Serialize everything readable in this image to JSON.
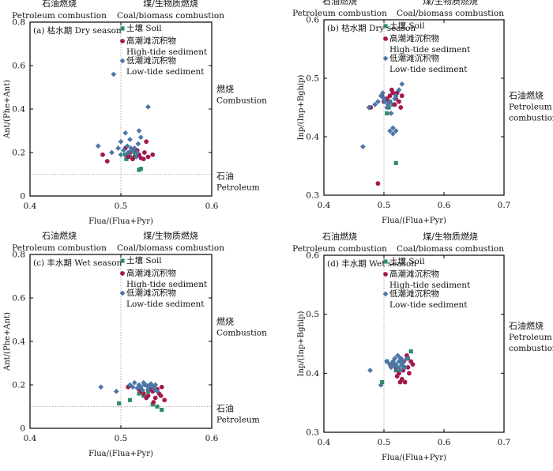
{
  "colors": {
    "soil": "#2e8b6a",
    "high": "#a3194f",
    "low": "#4a77a6",
    "axis": "#000000",
    "ref": "#9a9a9a"
  },
  "chart_data": [
    {
      "id": "a",
      "type": "scatter",
      "panel_label": "(a) 枯水期 Dry season",
      "xlabel": "Flua/(Flua+Pyr)",
      "ylabel": "Ant/(Phe+Ant)",
      "xlim": [
        0.4,
        0.6
      ],
      "ylim": [
        0,
        0.8
      ],
      "xticks": [
        "0.4",
        "0.5",
        "0.6"
      ],
      "yticks": [
        "0",
        "0.2",
        "0.4",
        "0.6",
        "0.8"
      ],
      "top_left_cn": "石油燃烧",
      "top_left_en": "Petroleum combustion",
      "top_right_cn": "煤/生物质燃烧",
      "top_right_en": "Coal/biomass combustion",
      "zones": [
        {
          "cn": "燃烧",
          "en": "Combustion",
          "y": 0.45
        },
        {
          "cn": "石油",
          "en": "Petroleum",
          "y": 0.05
        }
      ],
      "ref_lines": {
        "x": [
          0.5
        ],
        "y": [
          0.1
        ]
      },
      "legend": [
        {
          "series": "soil",
          "label": "土壤 Soil"
        },
        {
          "series": "high",
          "label": "高潮滩沉积物",
          "label2": "High-tide sediment"
        },
        {
          "series": "low",
          "label": "低潮滩沉积物",
          "label2": "Low-tide sediment"
        }
      ],
      "series": [
        {
          "name": "Soil",
          "key": "soil",
          "marker": "square",
          "x": [
            0.506,
            0.51,
            0.515,
            0.52,
            0.522,
            0.505
          ],
          "y": [
            0.17,
            0.18,
            0.2,
            0.12,
            0.125,
            0.19
          ]
        },
        {
          "name": "High-tide sediment",
          "key": "high",
          "marker": "circle",
          "x": [
            0.48,
            0.485,
            0.505,
            0.51,
            0.515,
            0.52,
            0.525,
            0.53,
            0.528,
            0.535,
            0.518,
            0.513,
            0.526,
            0.508,
            0.522
          ],
          "y": [
            0.19,
            0.16,
            0.22,
            0.2,
            0.18,
            0.19,
            0.17,
            0.18,
            0.25,
            0.19,
            0.21,
            0.17,
            0.2,
            0.18,
            0.175
          ]
        },
        {
          "name": "Low-tide sediment",
          "key": "low",
          "marker": "diamond",
          "x": [
            0.492,
            0.53,
            0.475,
            0.49,
            0.497,
            0.5,
            0.505,
            0.508,
            0.51,
            0.512,
            0.515,
            0.518,
            0.52,
            0.522,
            0.5,
            0.503,
            0.507,
            0.517,
            0.519,
            0.511
          ],
          "y": [
            0.56,
            0.41,
            0.23,
            0.2,
            0.22,
            0.25,
            0.29,
            0.2,
            0.26,
            0.21,
            0.22,
            0.2,
            0.3,
            0.27,
            0.19,
            0.21,
            0.23,
            0.18,
            0.24,
            0.22
          ]
        }
      ]
    },
    {
      "id": "b",
      "type": "scatter",
      "panel_label": "(b) 枯水期 Dry season",
      "xlabel": "Flua/(Flua+Pyr)",
      "ylabel": "Inp/(Inp+Bghip)",
      "xlim": [
        0.4,
        0.7
      ],
      "ylim": [
        0.3,
        0.6
      ],
      "xticks": [
        "0.4",
        "0.5",
        "0.6",
        "0.7"
      ],
      "yticks": [
        "0.3",
        "0.4",
        "0.5",
        "0.6"
      ],
      "top_left_cn": "石油燃烧",
      "top_left_en": "Petroleum combustion",
      "top_right_cn": "煤/生物质燃烧",
      "top_right_en": "Coal/biomass combustion",
      "zones": [
        {
          "cn": "石油燃烧",
          "en": "Petroleum",
          "en2": "combustion",
          "y": 0.455
        }
      ],
      "ref_lines": {
        "x": [
          0.5
        ],
        "y": []
      },
      "legend": [
        {
          "series": "soil",
          "label": "土壤 Soil"
        },
        {
          "series": "high",
          "label": "高潮滩沉积物",
          "label2": "High-tide sediment"
        },
        {
          "series": "low",
          "label": "低潮滩沉积物",
          "label2": "Low-tide sediment"
        }
      ],
      "series": [
        {
          "name": "Soil",
          "key": "soil",
          "marker": "square",
          "x": [
            0.505,
            0.52,
            0.51,
            0.515,
            0.5,
            0.508
          ],
          "y": [
            0.44,
            0.355,
            0.46,
            0.455,
            0.465,
            0.45
          ]
        },
        {
          "name": "High-tide sediment",
          "key": "high",
          "marker": "circle",
          "x": [
            0.49,
            0.478,
            0.5,
            0.51,
            0.515,
            0.52,
            0.525,
            0.528,
            0.53,
            0.513,
            0.518,
            0.505,
            0.522,
            0.497,
            0.508
          ],
          "y": [
            0.32,
            0.45,
            0.46,
            0.47,
            0.475,
            0.465,
            0.46,
            0.45,
            0.47,
            0.48,
            0.455,
            0.465,
            0.475,
            0.47,
            0.46
          ]
        },
        {
          "name": "Low-tide sediment",
          "key": "low",
          "marker": "diamond",
          "x": [
            0.465,
            0.475,
            0.485,
            0.49,
            0.495,
            0.5,
            0.505,
            0.51,
            0.51,
            0.515,
            0.515,
            0.52,
            0.52,
            0.525,
            0.53,
            0.512,
            0.498,
            0.507,
            0.518,
            0.502
          ],
          "y": [
            0.383,
            0.45,
            0.455,
            0.46,
            0.47,
            0.465,
            0.45,
            0.46,
            0.41,
            0.405,
            0.415,
            0.41,
            0.47,
            0.48,
            0.49,
            0.44,
            0.475,
            0.455,
            0.465,
            0.46
          ]
        }
      ]
    },
    {
      "id": "c",
      "type": "scatter",
      "panel_label": "(c) 丰水期 Wet season",
      "xlabel": "Flua/(Flua+Pyr)",
      "ylabel": "Ant/(Phe+Ant)",
      "xlim": [
        0.4,
        0.6
      ],
      "ylim": [
        0,
        0.8
      ],
      "xticks": [
        "0.4",
        "0.5",
        "0.6"
      ],
      "yticks": [
        "0",
        "0.2",
        "0.4",
        "0.6",
        "0.8"
      ],
      "top_left_cn": "石油燃烧",
      "top_left_en": "Petroleum combustion",
      "top_right_cn": "煤/生物质燃烧",
      "top_right_en": "Coal/biomass combustion",
      "zones": [
        {
          "cn": "燃烧",
          "en": "Combustion",
          "y": 0.45
        },
        {
          "cn": "石油",
          "en": "Petroleum",
          "y": 0.05
        }
      ],
      "ref_lines": {
        "x": [
          0.5
        ],
        "y": [
          0.1
        ]
      },
      "legend": [
        {
          "series": "soil",
          "label": "土壤 Soil"
        },
        {
          "series": "high",
          "label": "高潮滩沉积物",
          "label2": "High-tide sediment"
        },
        {
          "series": "low",
          "label": "低潮滩沉积物",
          "label2": "Low-tide sediment"
        }
      ],
      "series": [
        {
          "name": "Soil",
          "key": "soil",
          "marker": "square",
          "x": [
            0.498,
            0.51,
            0.525,
            0.535,
            0.54,
            0.545,
            0.53,
            0.52
          ],
          "y": [
            0.115,
            0.13,
            0.15,
            0.11,
            0.1,
            0.085,
            0.17,
            0.16
          ]
        },
        {
          "name": "High-tide sediment",
          "key": "high",
          "marker": "circle",
          "x": [
            0.508,
            0.52,
            0.525,
            0.53,
            0.535,
            0.538,
            0.54,
            0.542,
            0.545,
            0.548,
            0.528,
            0.532,
            0.522,
            0.536,
            0.544
          ],
          "y": [
            0.19,
            0.18,
            0.16,
            0.15,
            0.17,
            0.14,
            0.18,
            0.16,
            0.19,
            0.13,
            0.14,
            0.18,
            0.17,
            0.12,
            0.15
          ]
        },
        {
          "name": "Low-tide sediment",
          "key": "low",
          "marker": "diamond",
          "x": [
            0.478,
            0.495,
            0.51,
            0.515,
            0.52,
            0.522,
            0.525,
            0.527,
            0.53,
            0.532,
            0.535,
            0.538,
            0.54,
            0.518,
            0.524,
            0.529,
            0.533,
            0.537,
            0.513,
            0.526
          ],
          "y": [
            0.19,
            0.17,
            0.2,
            0.21,
            0.2,
            0.19,
            0.21,
            0.2,
            0.18,
            0.2,
            0.19,
            0.2,
            0.17,
            0.185,
            0.175,
            0.195,
            0.205,
            0.18,
            0.19,
            0.2
          ]
        }
      ]
    },
    {
      "id": "d",
      "type": "scatter",
      "panel_label": "(d) 丰水期 Wet season",
      "xlabel": "Flua/(Flua+Pyr)",
      "ylabel": "Inp/(Inp+Bghip)",
      "xlim": [
        0.4,
        0.7
      ],
      "ylim": [
        0.3,
        0.6
      ],
      "xticks": [
        "0.4",
        "0.5",
        "0.6",
        "0.7"
      ],
      "yticks": [
        "0.3",
        "0.4",
        "0.5",
        "0.6"
      ],
      "top_left_cn": "石油燃烧",
      "top_left_en": "Petroleum combustion",
      "top_right_cn": "煤/生物质燃烧",
      "top_right_en": "Coal/biomass combustion",
      "zones": [
        {
          "cn": "石油燃烧",
          "en": "Petroleum",
          "en2": "combustion",
          "y": 0.465
        }
      ],
      "ref_lines": {
        "x": [
          0.5
        ],
        "y": []
      },
      "legend": [
        {
          "series": "soil",
          "label": "土壤 Soil"
        },
        {
          "series": "high",
          "label": "高潮滩沉积物",
          "label2": "High-tide sediment"
        },
        {
          "series": "low",
          "label": "低潮滩沉积物",
          "label2": "Low-tide sediment"
        }
      ],
      "series": [
        {
          "name": "Soil",
          "key": "soil",
          "marker": "square",
          "x": [
            0.497,
            0.505,
            0.515,
            0.53,
            0.545,
            0.54,
            0.525,
            0.52
          ],
          "y": [
            0.385,
            0.42,
            0.415,
            0.42,
            0.437,
            0.425,
            0.41,
            0.405
          ]
        },
        {
          "name": "High-tide sediment",
          "key": "high",
          "marker": "circle",
          "x": [
            0.51,
            0.52,
            0.525,
            0.53,
            0.535,
            0.54,
            0.545,
            0.548,
            0.528,
            0.532,
            0.538,
            0.522,
            0.527,
            0.542,
            0.533
          ],
          "y": [
            0.415,
            0.41,
            0.4,
            0.39,
            0.385,
            0.41,
            0.42,
            0.415,
            0.425,
            0.405,
            0.43,
            0.395,
            0.385,
            0.4,
            0.42
          ]
        },
        {
          "name": "Low-tide sediment",
          "key": "low",
          "marker": "diamond",
          "x": [
            0.477,
            0.495,
            0.505,
            0.51,
            0.515,
            0.518,
            0.52,
            0.522,
            0.525,
            0.528,
            0.53,
            0.532,
            0.535,
            0.538,
            0.512,
            0.523,
            0.527,
            0.533,
            0.517,
            0.529
          ],
          "y": [
            0.405,
            0.38,
            0.42,
            0.415,
            0.42,
            0.425,
            0.415,
            0.41,
            0.42,
            0.425,
            0.415,
            0.42,
            0.41,
            0.425,
            0.41,
            0.43,
            0.405,
            0.41,
            0.415,
            0.42
          ]
        }
      ]
    }
  ]
}
